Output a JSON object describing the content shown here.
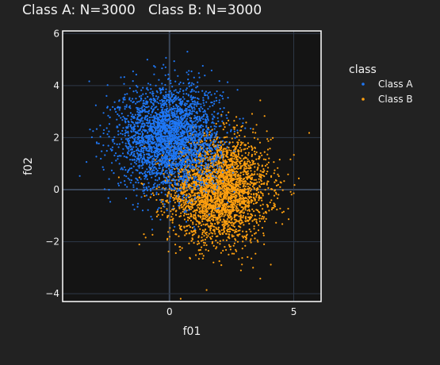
{
  "chart_data": {
    "type": "scatter",
    "title": "Class A: N=3000   Class B: N=3000",
    "xlabel": "f01",
    "ylabel": "f02",
    "xlim": [
      -4.3,
      6.1
    ],
    "ylim": [
      -4.3,
      6.1
    ],
    "xticks": [
      0,
      5
    ],
    "xtick_labels": [
      "0",
      "5"
    ],
    "yticks": [
      -4,
      -2,
      0,
      2,
      4,
      6
    ],
    "ytick_labels": [
      "−4",
      "−2",
      "0",
      "2",
      "4",
      "6"
    ],
    "grid": true,
    "legend": {
      "title": "class",
      "placement": "right"
    },
    "series": [
      {
        "name": "Class A",
        "color": "#1f77f4",
        "n": 3000,
        "mean": [
          0,
          2
        ],
        "std": [
          1.0,
          1.0
        ]
      },
      {
        "name": "Class B",
        "color": "#ffa010",
        "n": 3000,
        "mean": [
          2,
          0
        ],
        "std": [
          1.0,
          1.0
        ]
      }
    ]
  }
}
